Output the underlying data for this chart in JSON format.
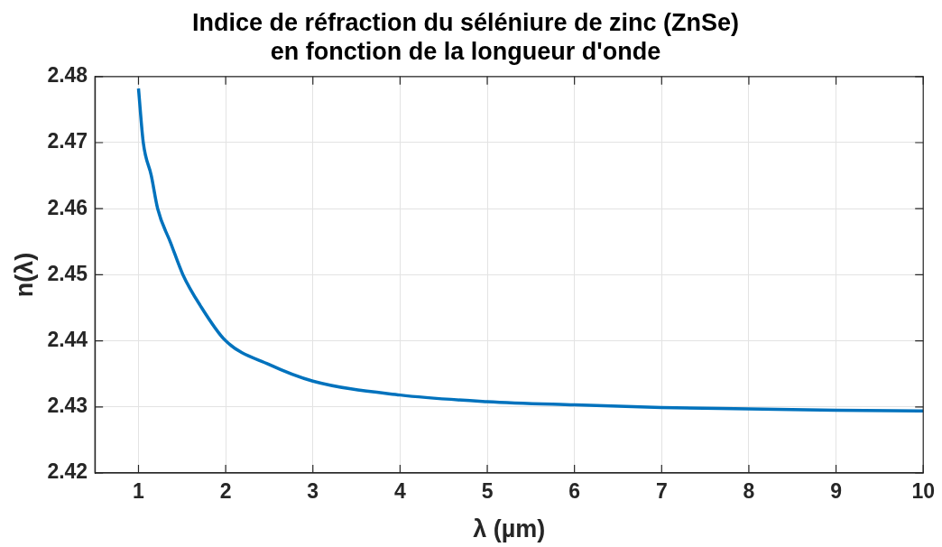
{
  "chart_data": {
    "type": "line",
    "title": "Indice de réfraction du séléniure de zinc (ZnSe)\nen fonction de la longueur d'onde",
    "xlabel": "λ (µm)",
    "ylabel": "n(λ)",
    "x": [
      1,
      1.055,
      1.147,
      1.22,
      1.37,
      1.51,
      1.706,
      2,
      2.5,
      3,
      4,
      5,
      6,
      7,
      8,
      9,
      10
    ],
    "series": [
      {
        "color": "#0072bd",
        "values": [
          2.4782,
          2.47,
          2.465,
          2.46,
          2.4548,
          2.45,
          2.4454,
          2.44,
          2.4364,
          2.4339,
          2.4318,
          2.4308,
          2.4303,
          2.4299,
          2.4297,
          2.4295,
          2.4294
        ]
      }
    ],
    "xlim": [
      0.5,
      10
    ],
    "xticks": [
      1,
      2,
      3,
      4,
      5,
      6,
      7,
      8,
      9,
      10
    ],
    "ylim": [
      2.42,
      2.48
    ],
    "yticks": [
      2.42,
      2.43,
      2.44,
      2.45,
      2.46,
      2.47,
      2.48
    ],
    "grid": true,
    "legend": false,
    "marker": "none",
    "line_style": "solid"
  }
}
